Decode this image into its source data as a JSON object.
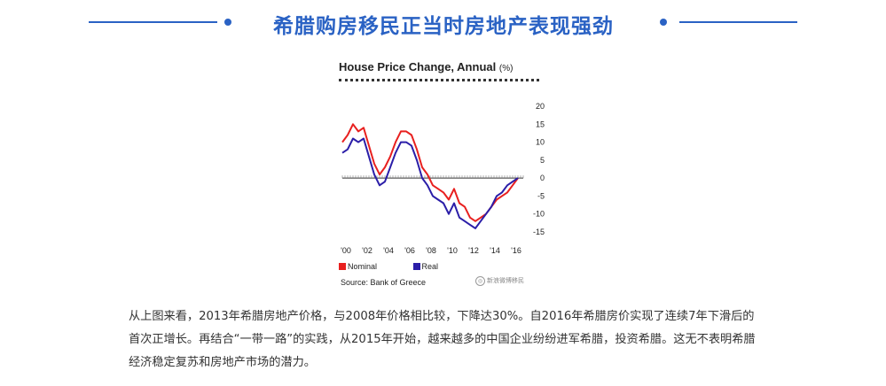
{
  "header": {
    "title": "希腊购房移民正当时房地产表现强劲",
    "accent": "#2a62c4"
  },
  "chart_data": {
    "type": "line",
    "title": "House Price Change, Annual",
    "title_unit": "(%)",
    "x_ticks": [
      "'00",
      "'02",
      "'04",
      "'06",
      "'08",
      "'10",
      "'12",
      "'14",
      "'16"
    ],
    "y_ticks": [
      "20",
      "15",
      "10",
      "5",
      "0",
      "-5",
      "-10",
      "-15"
    ],
    "ylim": [
      -15,
      20
    ],
    "xlim": [
      2000,
      2017
    ],
    "series": [
      {
        "name": "Nominal",
        "color": "#e8201f",
        "x": [
          2000,
          2000.5,
          2001,
          2001.5,
          2002,
          2002.5,
          2003,
          2003.5,
          2004,
          2004.5,
          2005,
          2005.5,
          2006,
          2006.5,
          2007,
          2007.5,
          2008,
          2008.5,
          2009,
          2009.5,
          2010,
          2010.5,
          2011,
          2011.5,
          2012,
          2012.5,
          2013,
          2013.5,
          2014,
          2014.5,
          2015,
          2015.5,
          2016,
          2016.5
        ],
        "values": [
          10,
          12,
          15,
          13,
          14,
          9,
          4,
          1,
          3,
          6,
          10,
          13,
          13,
          12,
          8,
          3,
          1,
          -2,
          -3,
          -4,
          -6,
          -3,
          -7,
          -8,
          -11,
          -12,
          -11,
          -10,
          -8,
          -6,
          -5,
          -4,
          -2,
          0
        ]
      },
      {
        "name": "Real",
        "color": "#2b1ea8",
        "x": [
          2000,
          2000.5,
          2001,
          2001.5,
          2002,
          2002.5,
          2003,
          2003.5,
          2004,
          2004.5,
          2005,
          2005.5,
          2006,
          2006.5,
          2007,
          2007.5,
          2008,
          2008.5,
          2009,
          2009.5,
          2010,
          2010.5,
          2011,
          2011.5,
          2012,
          2012.5,
          2013,
          2013.5,
          2014,
          2014.5,
          2015,
          2015.5,
          2016,
          2016.5
        ],
        "values": [
          7,
          8,
          11,
          10,
          11,
          6,
          1,
          -2,
          -1,
          3,
          7,
          10,
          10,
          9,
          5,
          0,
          -2,
          -5,
          -6,
          -7,
          -10,
          -7,
          -11,
          -12,
          -13,
          -14,
          -12,
          -10,
          -8,
          -5,
          -4,
          -2,
          -1,
          0
        ]
      }
    ],
    "legend": [
      "Nominal",
      "Real"
    ],
    "source": "Source: Bank of Greece",
    "grid": false
  },
  "watermark": {
    "text": "新浪微博移民"
  },
  "body": {
    "paragraph": "从上图来看，2013年希腊房地产价格，与2008年价格相比较，下降达30%。自2016年希腊房价实现了连续7年下滑后的首次正增长。再结合“一带一路”的实践，从2015年开始，越来越多的中国企业纷纷进军希腊，投资希腊。这无不表明希腊经济稳定复苏和房地产市场的潜力。"
  }
}
